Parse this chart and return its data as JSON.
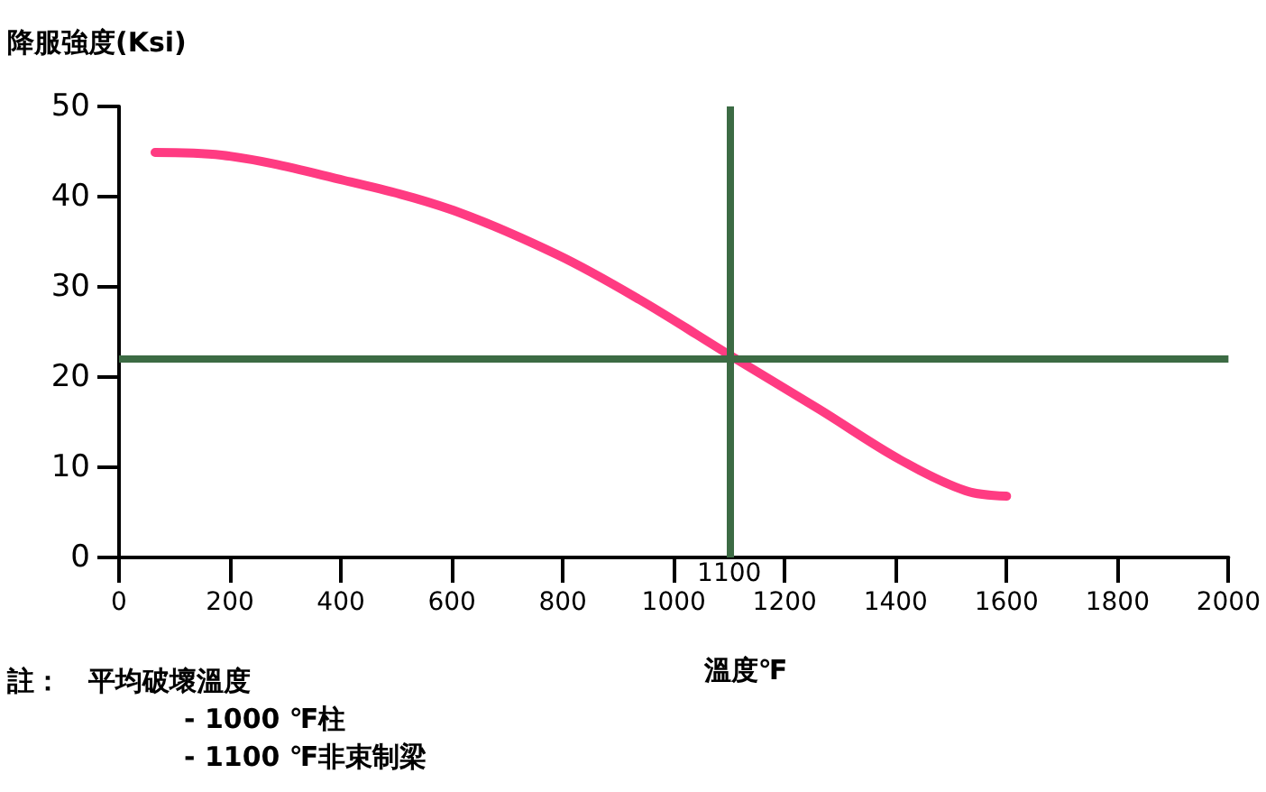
{
  "chart_data": {
    "type": "line",
    "ylabel": "降服強度(Ksi)",
    "xlabel": "溫度℉",
    "x": [
      65,
      185,
      406,
      597,
      789,
      938,
      1107,
      1263,
      1409,
      1526,
      1600
    ],
    "series": [
      {
        "color": "#ff3b82",
        "values": [
          44.9,
          44.6,
          41.8,
          38.6,
          33.6,
          28.6,
          22.2,
          16.4,
          10.8,
          7.4,
          6.8
        ]
      }
    ],
    "xlim": [
      0,
      2000
    ],
    "xticks": [
      0,
      200,
      400,
      600,
      800,
      1000,
      1200,
      1400,
      1600,
      1800,
      2000
    ],
    "ylim": [
      0,
      50
    ],
    "yticks": [
      0,
      10,
      20,
      30,
      40,
      50
    ],
    "ref_lines": [
      {
        "axis": "x",
        "value": 1100,
        "label": "1100",
        "color": "#3c6b44"
      },
      {
        "axis": "y",
        "value": 22,
        "label": null,
        "color": "#3c6b44"
      }
    ],
    "annotations": [
      "註：　平均破壞溫度",
      "- 1000 ℉柱",
      "- 1100 ℉非束制梁"
    ],
    "grid": false,
    "marker": "none",
    "line_style": "solid"
  }
}
